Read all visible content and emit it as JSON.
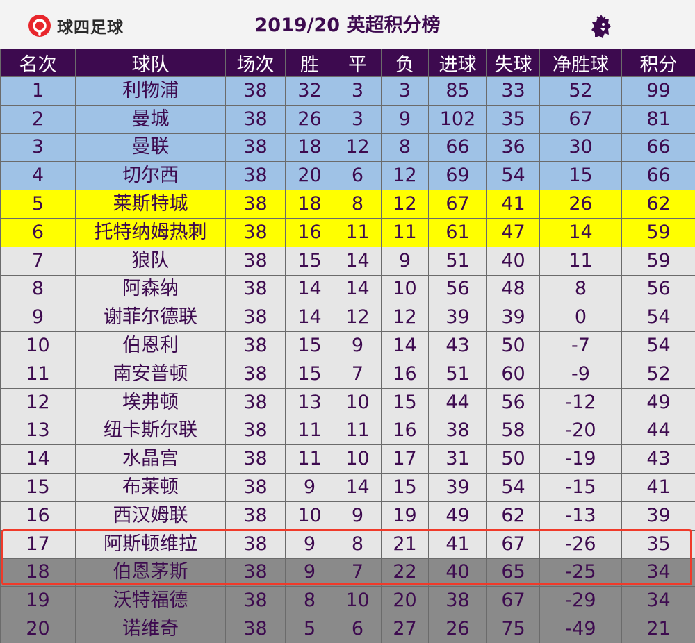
{
  "header": {
    "logo_text": "球四足球",
    "title": "2019/20 英超积分榜"
  },
  "colors": {
    "header_bg": "#3d0a4f",
    "champions_league_row": "#9fc2e6",
    "europa_row": "#ffff00",
    "normal_row": "#e6e6e6",
    "relegation_row": "#8a8a8a",
    "highlight_border": "#f03a2a",
    "logo_red": "#e8262c"
  },
  "icons": {
    "logo": "qiu-logo-icon",
    "premier_league": "premier-league-lion-icon"
  },
  "table": {
    "columns": [
      "名次",
      "球队",
      "场次",
      "胜",
      "平",
      "负",
      "进球",
      "失球",
      "净胜球",
      "积分"
    ],
    "rows": [
      {
        "zone": "cl",
        "cells": [
          "1",
          "利物浦",
          "38",
          "32",
          "3",
          "3",
          "85",
          "33",
          "52",
          "99"
        ]
      },
      {
        "zone": "cl",
        "cells": [
          "2",
          "曼城",
          "38",
          "26",
          "3",
          "9",
          "102",
          "35",
          "67",
          "81"
        ]
      },
      {
        "zone": "cl",
        "cells": [
          "3",
          "曼联",
          "38",
          "18",
          "12",
          "8",
          "66",
          "36",
          "30",
          "66"
        ]
      },
      {
        "zone": "cl",
        "cells": [
          "4",
          "切尔西",
          "38",
          "20",
          "6",
          "12",
          "69",
          "54",
          "15",
          "66"
        ]
      },
      {
        "zone": "el",
        "cells": [
          "5",
          "莱斯特城",
          "38",
          "18",
          "8",
          "12",
          "67",
          "41",
          "26",
          "62"
        ]
      },
      {
        "zone": "el",
        "cells": [
          "6",
          "托特纳姆热刺",
          "38",
          "16",
          "11",
          "11",
          "61",
          "47",
          "14",
          "59"
        ]
      },
      {
        "zone": "mid",
        "cells": [
          "7",
          "狼队",
          "38",
          "15",
          "14",
          "9",
          "51",
          "40",
          "11",
          "59"
        ]
      },
      {
        "zone": "mid",
        "cells": [
          "8",
          "阿森纳",
          "38",
          "14",
          "14",
          "10",
          "56",
          "48",
          "8",
          "56"
        ]
      },
      {
        "zone": "mid",
        "cells": [
          "9",
          "谢菲尔德联",
          "38",
          "14",
          "12",
          "12",
          "39",
          "39",
          "0",
          "54"
        ]
      },
      {
        "zone": "mid",
        "cells": [
          "10",
          "伯恩利",
          "38",
          "15",
          "9",
          "14",
          "43",
          "50",
          "-7",
          "54"
        ]
      },
      {
        "zone": "mid",
        "cells": [
          "11",
          "南安普顿",
          "38",
          "15",
          "7",
          "16",
          "51",
          "60",
          "-9",
          "52"
        ]
      },
      {
        "zone": "mid",
        "cells": [
          "12",
          "埃弗顿",
          "38",
          "13",
          "10",
          "15",
          "44",
          "56",
          "-12",
          "49"
        ]
      },
      {
        "zone": "mid",
        "cells": [
          "13",
          "纽卡斯尔联",
          "38",
          "11",
          "11",
          "16",
          "38",
          "58",
          "-20",
          "44"
        ]
      },
      {
        "zone": "mid",
        "cells": [
          "14",
          "水晶宫",
          "38",
          "11",
          "10",
          "17",
          "31",
          "50",
          "-19",
          "43"
        ]
      },
      {
        "zone": "mid",
        "cells": [
          "15",
          "布莱顿",
          "38",
          "9",
          "14",
          "15",
          "39",
          "54",
          "-15",
          "41"
        ]
      },
      {
        "zone": "mid",
        "cells": [
          "16",
          "西汉姆联",
          "38",
          "10",
          "9",
          "19",
          "49",
          "62",
          "-13",
          "39"
        ]
      },
      {
        "zone": "mid",
        "cells": [
          "17",
          "阿斯顿维拉",
          "38",
          "9",
          "8",
          "21",
          "41",
          "67",
          "-26",
          "35"
        ]
      },
      {
        "zone": "rel",
        "cells": [
          "18",
          "伯恩茅斯",
          "38",
          "9",
          "7",
          "22",
          "40",
          "65",
          "-25",
          "34"
        ]
      },
      {
        "zone": "rel",
        "cells": [
          "19",
          "沃特福德",
          "38",
          "8",
          "10",
          "20",
          "38",
          "67",
          "-29",
          "34"
        ]
      },
      {
        "zone": "rel",
        "cells": [
          "20",
          "诺维奇",
          "38",
          "5",
          "6",
          "27",
          "26",
          "75",
          "-49",
          "21"
        ]
      }
    ]
  }
}
